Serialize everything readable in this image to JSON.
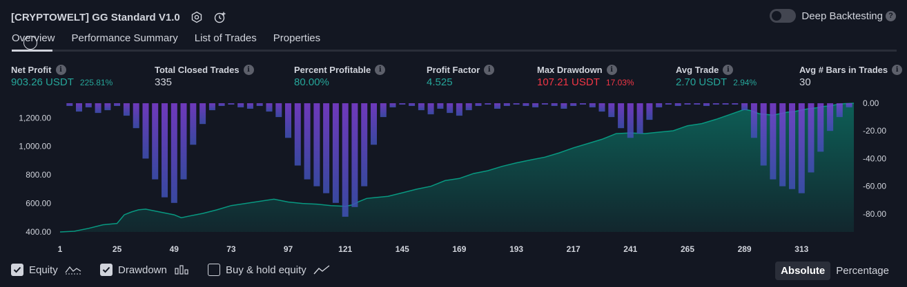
{
  "header": {
    "title": "[CRYPTOWELT] GG Standard V1.0",
    "icons": [
      "gear-icon",
      "add-alert-icon"
    ],
    "deep_backtesting": {
      "label": "Deep Backtesting",
      "enabled": false,
      "help_icon": "question-icon"
    }
  },
  "tabs": [
    {
      "label": "Overview",
      "active": true
    },
    {
      "label": "Performance Summary"
    },
    {
      "label": "List of Trades"
    },
    {
      "label": "Properties"
    }
  ],
  "metrics": [
    {
      "label": "Net Profit",
      "value": "903.26 USDT",
      "pct": "225.81%",
      "tone": "pos"
    },
    {
      "label": "Total Closed Trades",
      "value": "335",
      "pct": "",
      "tone": "neutral"
    },
    {
      "label": "Percent Profitable",
      "value": "80.00%",
      "pct": "",
      "tone": "pos"
    },
    {
      "label": "Profit Factor",
      "value": "4.525",
      "pct": "",
      "tone": "pos"
    },
    {
      "label": "Max Drawdown",
      "value": "107.21 USDT",
      "pct": "17.03%",
      "tone": "neg"
    },
    {
      "label": "Avg Trade",
      "value": "2.70 USDT",
      "pct": "2.94%",
      "tone": "pos"
    },
    {
      "label": "Avg # Bars in Trades",
      "value": "30",
      "pct": "",
      "tone": "neutral"
    }
  ],
  "chart_data": {
    "type": "area",
    "x_ticks": [
      "1",
      "25",
      "49",
      "73",
      "97",
      "121",
      "145",
      "169",
      "193",
      "217",
      "241",
      "265",
      "289",
      "313"
    ],
    "x_range": [
      1,
      335
    ],
    "left_axis": {
      "ticks": [
        "1,200.00",
        "1,000.00",
        "800.00",
        "600.00",
        "400.00"
      ],
      "range": [
        400,
        1303
      ]
    },
    "right_axis": {
      "ticks": [
        "0.00",
        "-20.00",
        "-40.00",
        "-60.00",
        "-80.00"
      ],
      "range": [
        -93,
        0
      ]
    },
    "series": [
      {
        "name": "Equity",
        "axis": "left",
        "x": [
          1,
          7,
          13,
          19,
          25,
          28,
          31,
          34,
          37,
          43,
          49,
          52,
          55,
          58,
          61,
          67,
          73,
          79,
          85,
          91,
          97,
          103,
          109,
          115,
          121,
          124,
          127,
          130,
          133,
          139,
          145,
          151,
          157,
          163,
          169,
          175,
          181,
          187,
          193,
          199,
          205,
          211,
          217,
          223,
          229,
          235,
          241,
          247,
          253,
          259,
          265,
          271,
          277,
          283,
          289,
          292,
          295,
          298,
          301,
          304,
          307,
          310,
          313,
          316,
          319,
          322,
          325,
          328,
          331,
          335
        ],
        "values": [
          400,
          405,
          425,
          450,
          460,
          520,
          540,
          555,
          560,
          540,
          520,
          500,
          510,
          520,
          530,
          555,
          585,
          600,
          615,
          630,
          610,
          600,
          595,
          585,
          580,
          590,
          615,
          635,
          640,
          650,
          675,
          700,
          720,
          760,
          775,
          810,
          830,
          860,
          885,
          905,
          925,
          955,
          990,
          1020,
          1050,
          1090,
          1095,
          1090,
          1100,
          1110,
          1145,
          1160,
          1190,
          1225,
          1260,
          1250,
          1230,
          1225,
          1220,
          1230,
          1240,
          1245,
          1255,
          1265,
          1270,
          1280,
          1285,
          1295,
          1300,
          1303
        ]
      },
      {
        "name": "Drawdown",
        "axis": "right",
        "x": [
          1,
          5,
          9,
          13,
          17,
          21,
          25,
          29,
          33,
          37,
          41,
          45,
          49,
          53,
          57,
          61,
          65,
          69,
          73,
          77,
          81,
          85,
          89,
          93,
          97,
          101,
          105,
          109,
          113,
          117,
          121,
          125,
          129,
          133,
          137,
          141,
          145,
          149,
          153,
          157,
          161,
          165,
          169,
          173,
          177,
          181,
          185,
          189,
          193,
          197,
          201,
          205,
          209,
          213,
          217,
          221,
          225,
          229,
          233,
          237,
          241,
          245,
          249,
          253,
          257,
          261,
          265,
          269,
          273,
          277,
          281,
          285,
          289,
          293,
          297,
          301,
          305,
          309,
          313,
          317,
          321,
          325,
          329,
          333,
          335
        ],
        "values": [
          0,
          -2,
          -6,
          -3,
          -7,
          -5,
          -2,
          -9,
          -18,
          -40,
          -55,
          -68,
          -72,
          -55,
          -30,
          -15,
          -5,
          -2,
          -1,
          -3,
          -4,
          -2,
          -6,
          -10,
          -25,
          -45,
          -55,
          -60,
          -65,
          -72,
          -82,
          -75,
          -60,
          -30,
          -10,
          -3,
          -1,
          -2,
          -5,
          -8,
          -4,
          -7,
          -9,
          -5,
          -2,
          -1,
          -4,
          -2,
          -1,
          -2,
          -3,
          -1,
          -2,
          -4,
          -2,
          -1,
          -3,
          -6,
          -10,
          -18,
          -25,
          -22,
          -12,
          -3,
          -1,
          -2,
          -1,
          -1,
          -2,
          -1,
          -1,
          -1,
          -5,
          -25,
          -45,
          -55,
          -60,
          -62,
          -65,
          -50,
          -35,
          -20,
          -10,
          -3,
          0
        ]
      }
    ],
    "colors": {
      "equity": "#089981",
      "drawdown": "#7e3fd6",
      "drawdown_deep": "#3f51b5"
    },
    "grid": false
  },
  "legend": [
    {
      "label": "Equity",
      "checked": true,
      "icon": "equity-line-icon"
    },
    {
      "label": "Drawdown",
      "checked": true,
      "icon": "drawdown-bars-icon"
    },
    {
      "label": "Buy & hold equity",
      "checked": false,
      "icon": "buy-hold-line-icon"
    }
  ],
  "modes": [
    {
      "label": "Absolute",
      "active": true
    },
    {
      "label": "Percentage",
      "active": false
    }
  ]
}
